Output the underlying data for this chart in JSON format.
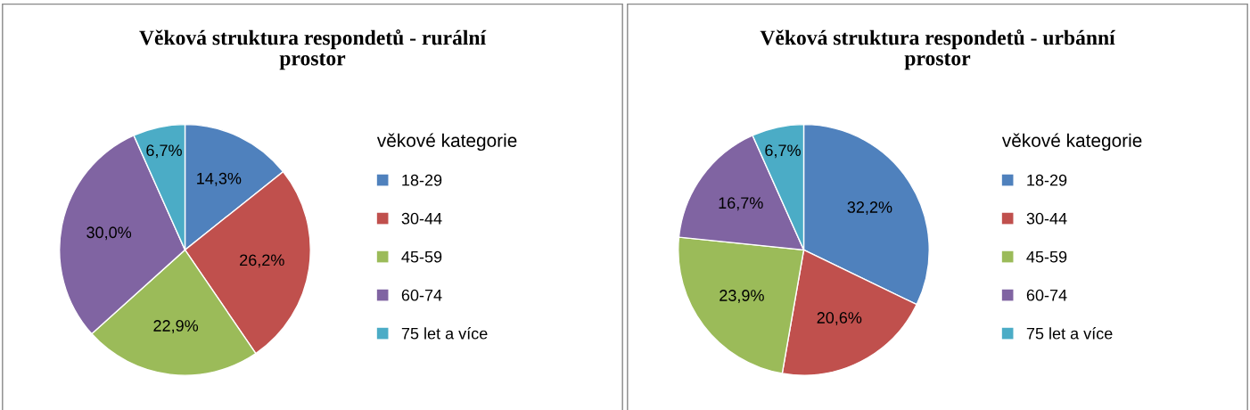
{
  "chart_data": [
    {
      "type": "pie",
      "title": "Věková struktura respondetů - rurální prostor",
      "legend_title": "věkové kategorie",
      "legend": "right",
      "categories": [
        "18-29",
        "30-44",
        "45-59",
        "60-74",
        "75 let a více"
      ],
      "values": [
        14.3,
        26.2,
        22.9,
        30.0,
        6.7
      ],
      "value_labels": [
        "14,3%",
        "26,2%",
        "22,9%",
        "30,0%",
        "6,7%"
      ],
      "colors": [
        "#4f81bd",
        "#c0504d",
        "#9bbb59",
        "#8064a2",
        "#4bacc6"
      ]
    },
    {
      "type": "pie",
      "title": "Věková struktura respondetů - urbánní prostor",
      "legend_title": "věkové kategorie",
      "legend": "right",
      "categories": [
        "18-29",
        "30-44",
        "45-59",
        "60-74",
        "75 let a více"
      ],
      "values": [
        32.2,
        20.6,
        23.9,
        16.7,
        6.7
      ],
      "value_labels": [
        "32,2%",
        "20,6%",
        "23,9%",
        "16,7%",
        "6,7%"
      ],
      "colors": [
        "#4f81bd",
        "#c0504d",
        "#9bbb59",
        "#8064a2",
        "#4bacc6"
      ]
    }
  ]
}
